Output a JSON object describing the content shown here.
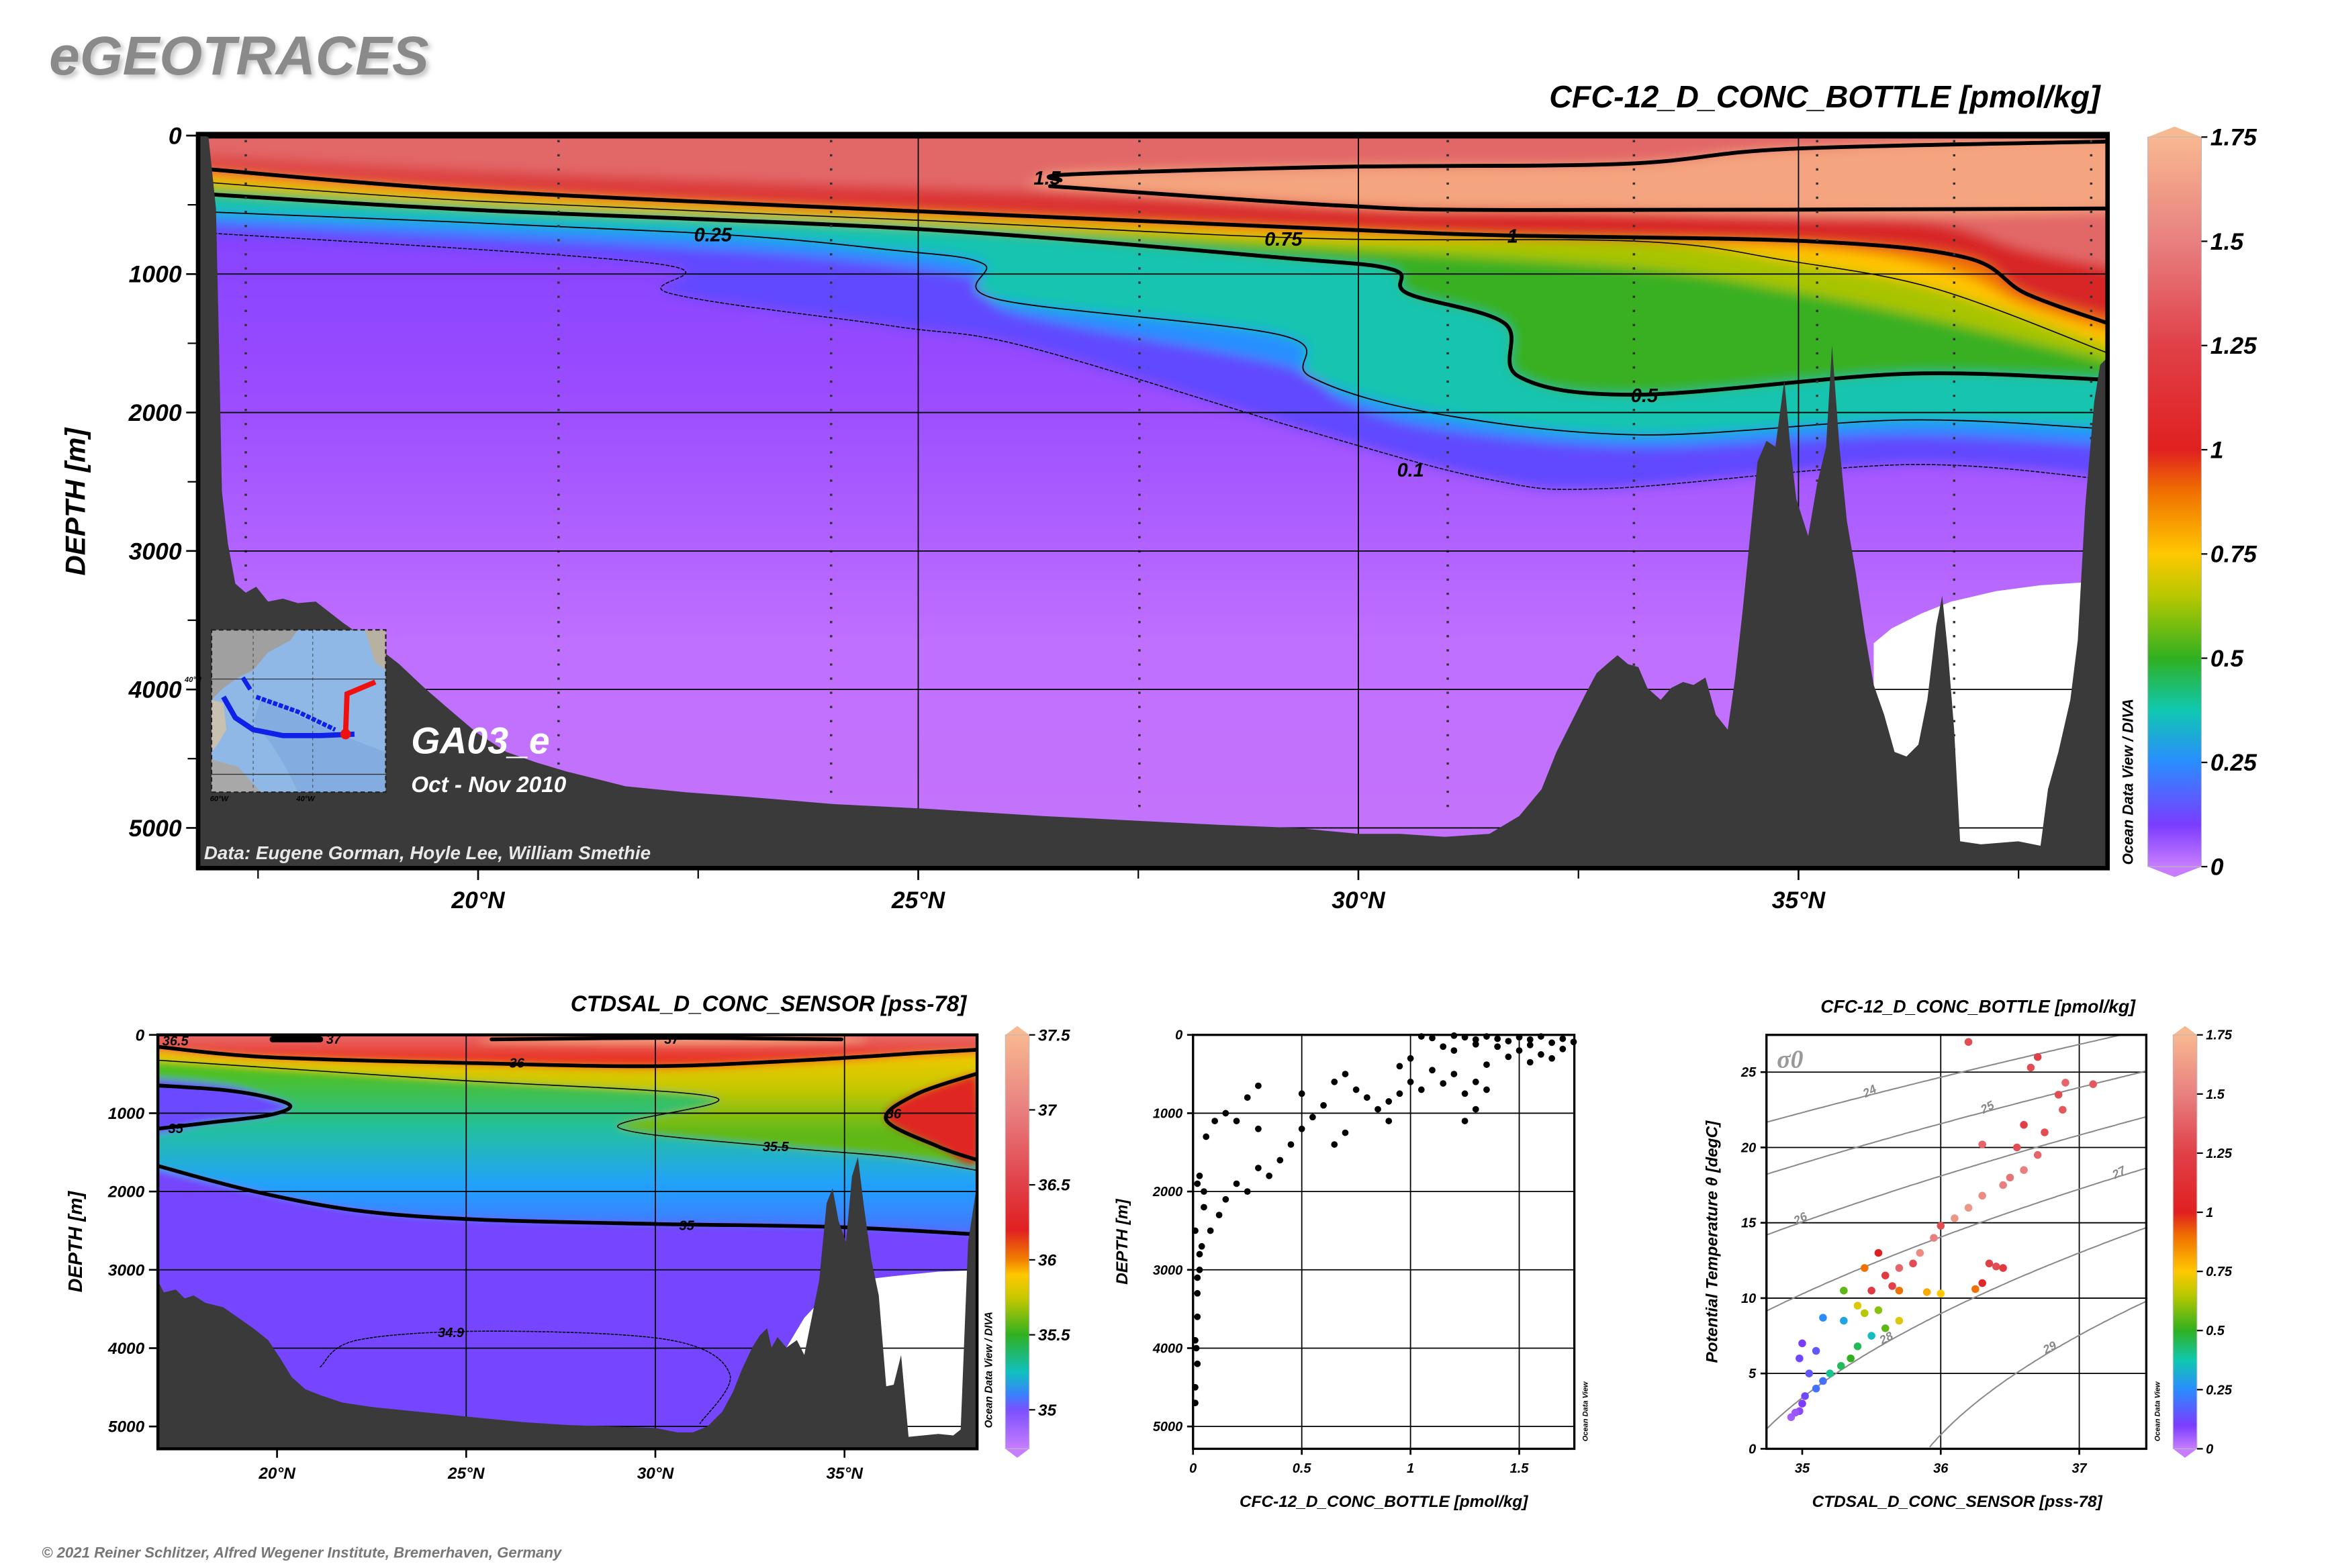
{
  "logo": "eGEOTRACES",
  "copyright": "© 2021 Reiner Schlitzer, Alfred Wegener Institute, Bremerhaven, Germany",
  "main": {
    "title": "CFC-12_D_CONC_BOTTLE [pmol/kg]",
    "ylabel": "DEPTH [m]",
    "odv_label": "Ocean Data View / DIVA",
    "section_name": "GA03_e",
    "period": "Oct - Nov 2010",
    "credit": "Data: Eugene Gorman, Hoyle Lee, William Smethie",
    "contour_labels": [
      "1.5",
      "0.25",
      "0.75",
      "1",
      "0.5",
      "0.1"
    ],
    "inset_labels": {
      "lat": "40°N",
      "lon1": "60°W",
      "lon2": "40°W"
    }
  },
  "salinity": {
    "title": "CTDSAL_D_CONC_SENSOR [pss-78]",
    "ylabel": "DEPTH [m]",
    "odv_label": "Ocean Data View / DIVA",
    "contour_labels": [
      "36.5",
      "37",
      "37",
      "36",
      "36",
      "35",
      "35.5",
      "35",
      "34.9"
    ]
  },
  "profile": {
    "xlabel": "CFC-12_D_CONC_BOTTLE [pmol/kg]",
    "ylabel": "DEPTH [m]",
    "odv_label": "Ocean Data View"
  },
  "ts": {
    "title": "CFC-12_D_CONC_BOTTLE [pmol/kg]",
    "xlabel": "CTDSAL_D_CONC_SENSOR [pss-78]",
    "ylabel": "Potential Temperature θ [degC]",
    "sigma_label": "σ0",
    "odv_label": "Ocean Data View"
  },
  "chart_data": [
    {
      "id": "cfc_section",
      "type": "heatmap",
      "title": "CFC-12_D_CONC_BOTTLE [pmol/kg]",
      "xlabel": "",
      "ylabel": "DEPTH [m]",
      "xlim": [
        16.8,
        38.5
      ],
      "ylim": [
        5300,
        0
      ],
      "xticks": [
        20,
        25,
        30,
        35
      ],
      "xticklabels": [
        "20°N",
        "25°N",
        "30°N",
        "35°N"
      ],
      "yticks": [
        0,
        1000,
        2000,
        3000,
        4000,
        5000
      ],
      "yticklabels": [
        "0",
        "1000",
        "2000",
        "3000",
        "4000",
        "5000"
      ],
      "contour_levels": [
        0.1,
        0.25,
        0.5,
        0.75,
        1,
        1.5
      ],
      "colorbar": {
        "range": [
          0,
          1.75
        ],
        "ticks": [
          0,
          0.25,
          0.5,
          0.75,
          1,
          1.25,
          1.5,
          1.75
        ],
        "ticklabels": [
          "0",
          "0.25",
          "0.5",
          "0.75",
          "1",
          "1.25",
          "1.5",
          "1.75"
        ],
        "stops": [
          [
            0,
            "#c77dff"
          ],
          [
            0.1,
            "#7b3cff"
          ],
          [
            0.25,
            "#2a8cff"
          ],
          [
            0.375,
            "#10c8b0"
          ],
          [
            0.5,
            "#30b020"
          ],
          [
            0.65,
            "#b8c800"
          ],
          [
            0.75,
            "#ffc800"
          ],
          [
            0.9,
            "#f07000"
          ],
          [
            1.0,
            "#e02020"
          ],
          [
            1.25,
            "#e04048"
          ],
          [
            1.5,
            "#e88080"
          ],
          [
            1.75,
            "#f8b890"
          ]
        ]
      },
      "grid": true
    },
    {
      "id": "salinity_section",
      "type": "heatmap",
      "title": "CTDSAL_D_CONC_SENSOR [pss-78]",
      "xlabel": "",
      "ylabel": "DEPTH [m]",
      "xlim": [
        16.8,
        38.5
      ],
      "ylim": [
        5300,
        0
      ],
      "xticks": [
        20,
        25,
        30,
        35
      ],
      "xticklabels": [
        "20°N",
        "25°N",
        "30°N",
        "35°N"
      ],
      "yticks": [
        0,
        1000,
        2000,
        3000,
        4000,
        5000
      ],
      "yticklabels": [
        "0",
        "1000",
        "2000",
        "3000",
        "4000",
        "5000"
      ],
      "contour_levels": [
        34.9,
        35,
        35.5,
        36,
        36.5,
        37
      ],
      "colorbar": {
        "range": [
          34.74,
          37.5
        ],
        "ticks": [
          35,
          35.5,
          36,
          36.5,
          37,
          37.5
        ],
        "ticklabels": [
          "35",
          "35.5",
          "36",
          "36.5",
          "37",
          "37.5"
        ],
        "stops": [
          [
            34.74,
            "#c77dff"
          ],
          [
            35.0,
            "#7b50ff"
          ],
          [
            35.1,
            "#3a80ff"
          ],
          [
            35.25,
            "#10c0c0"
          ],
          [
            35.5,
            "#30b020"
          ],
          [
            35.75,
            "#c8c800"
          ],
          [
            35.9,
            "#ffc800"
          ],
          [
            36.0,
            "#f08000"
          ],
          [
            36.2,
            "#e02020"
          ],
          [
            36.5,
            "#e04048"
          ],
          [
            37.0,
            "#e88080"
          ],
          [
            37.5,
            "#f8b890"
          ]
        ]
      },
      "grid": true
    },
    {
      "id": "cfc_profile",
      "type": "scatter",
      "xlabel": "CFC-12_D_CONC_BOTTLE [pmol/kg]",
      "ylabel": "DEPTH [m]",
      "xlim": [
        0,
        1.76
      ],
      "ylim": [
        5300,
        0
      ],
      "xticks": [
        0,
        0.5,
        1,
        1.5
      ],
      "xticklabels": [
        "0",
        "0.5",
        "1",
        "1.5"
      ],
      "yticks": [
        0,
        1000,
        2000,
        3000,
        4000,
        5000
      ],
      "yticklabels": [
        "0",
        "1000",
        "2000",
        "3000",
        "4000",
        "5000"
      ],
      "grid": true,
      "points": [
        [
          1.05,
          20
        ],
        [
          1.1,
          40
        ],
        [
          1.2,
          10
        ],
        [
          1.25,
          30
        ],
        [
          1.3,
          60
        ],
        [
          1.35,
          20
        ],
        [
          1.4,
          50
        ],
        [
          1.45,
          80
        ],
        [
          1.5,
          30
        ],
        [
          1.55,
          60
        ],
        [
          1.6,
          20
        ],
        [
          1.65,
          100
        ],
        [
          1.7,
          50
        ],
        [
          1.75,
          90
        ],
        [
          1.3,
          120
        ],
        [
          1.4,
          150
        ],
        [
          1.5,
          200
        ],
        [
          1.6,
          250
        ],
        [
          1.2,
          200
        ],
        [
          1.45,
          280
        ],
        [
          1.55,
          350
        ],
        [
          1.65,
          300
        ],
        [
          1.0,
          300
        ],
        [
          0.95,
          400
        ],
        [
          1.1,
          450
        ],
        [
          1.2,
          500
        ],
        [
          1.3,
          600
        ],
        [
          1.35,
          700
        ],
        [
          1.25,
          750
        ],
        [
          1.15,
          620
        ],
        [
          1.05,
          700
        ],
        [
          0.9,
          850
        ],
        [
          0.8,
          800
        ],
        [
          0.75,
          700
        ],
        [
          0.6,
          900
        ],
        [
          0.55,
          1050
        ],
        [
          0.5,
          1200
        ],
        [
          0.45,
          1400
        ],
        [
          0.4,
          1600
        ],
        [
          0.35,
          1800
        ],
        [
          0.3,
          1700
        ],
        [
          0.25,
          2000
        ],
        [
          0.2,
          1900
        ],
        [
          0.15,
          2100
        ],
        [
          0.12,
          2300
        ],
        [
          0.08,
          2500
        ],
        [
          0.05,
          2200
        ],
        [
          0.04,
          2700
        ],
        [
          0.03,
          3000
        ],
        [
          0.02,
          3300
        ],
        [
          0.02,
          3600
        ],
        [
          0.015,
          4000
        ],
        [
          0.01,
          4500
        ],
        [
          0.01,
          4700
        ],
        [
          0.05,
          2000
        ],
        [
          0.03,
          1800
        ],
        [
          0.06,
          1300
        ],
        [
          0.1,
          1100
        ],
        [
          0.15,
          1000
        ],
        [
          0.25,
          800
        ],
        [
          0.3,
          650
        ],
        [
          0.5,
          750
        ],
        [
          0.65,
          600
        ],
        [
          0.7,
          500
        ],
        [
          0.85,
          950
        ],
        [
          0.95,
          750
        ],
        [
          1.0,
          600
        ],
        [
          0.9,
          1100
        ],
        [
          1.25,
          1100
        ],
        [
          1.3,
          950
        ],
        [
          0.65,
          1400
        ],
        [
          0.7,
          1250
        ],
        [
          0.3,
          1200
        ],
        [
          0.2,
          1100
        ],
        [
          0.02,
          1900
        ],
        [
          0.01,
          2500
        ],
        [
          0.03,
          2800
        ],
        [
          0.02,
          4200
        ],
        [
          0.01,
          3900
        ],
        [
          0.02,
          3100
        ],
        [
          1.15,
          150
        ],
        [
          1.55,
          130
        ],
        [
          1.7,
          180
        ],
        [
          1.35,
          380
        ]
      ]
    },
    {
      "id": "ts_diagram",
      "type": "scatter",
      "title": "CFC-12_D_CONC_BOTTLE [pmol/kg]",
      "xlabel": "CTDSAL_D_CONC_SENSOR [pss-78]",
      "ylabel": "Potential Temperature θ [degC]",
      "xlim": [
        34.74,
        37.49
      ],
      "ylim": [
        0,
        27.5
      ],
      "xticks": [
        35,
        36,
        37
      ],
      "xticklabels": [
        "35",
        "36",
        "37"
      ],
      "yticks": [
        0,
        5,
        10,
        15,
        20,
        25
      ],
      "yticklabels": [
        "0",
        "5",
        "10",
        "15",
        "20",
        "25"
      ],
      "grid": true,
      "color_variable": "CFC-12_D_CONC_BOTTLE [pmol/kg]",
      "colorbar": {
        "range": [
          0,
          1.75
        ],
        "ticks": [
          0,
          0.25,
          0.5,
          0.75,
          1,
          1.25,
          1.5,
          1.75
        ],
        "ticklabels": [
          "0",
          "0.25",
          "0.5",
          "0.75",
          "1",
          "1.25",
          "1.5",
          "1.75"
        ]
      },
      "isopycnals": [
        {
          "level": 24,
          "label": "24",
          "label_sal": 35.5
        },
        {
          "level": 25,
          "label": "25",
          "label_sal": 36.35
        },
        {
          "level": 26,
          "label": "26",
          "label_sal": 35.0
        },
        {
          "level": 27,
          "label": "27",
          "label_sal": 37.3
        },
        {
          "level": 28,
          "label": "28",
          "label_sal": 35.62
        },
        {
          "level": 29,
          "label": "29",
          "label_sal": 36.8
        }
      ],
      "points": [
        [
          36.2,
          27,
          1.3
        ],
        [
          36.7,
          26,
          1.25
        ],
        [
          36.65,
          25.3,
          1.3
        ],
        [
          36.9,
          24.3,
          1.4
        ],
        [
          37.1,
          24.2,
          1.35
        ],
        [
          36.85,
          23.5,
          1.3
        ],
        [
          36.88,
          22.5,
          1.35
        ],
        [
          36.6,
          21.5,
          1.25
        ],
        [
          36.75,
          21,
          1.3
        ],
        [
          36.55,
          20,
          1.3
        ],
        [
          36.3,
          20.2,
          1.4
        ],
        [
          36.7,
          19.5,
          1.4
        ],
        [
          36.6,
          18.5,
          1.5
        ],
        [
          36.5,
          18,
          1.45
        ],
        [
          36.45,
          17.5,
          1.5
        ],
        [
          36.3,
          16.8,
          1.55
        ],
        [
          36.2,
          16,
          1.6
        ],
        [
          36.1,
          15.3,
          1.6
        ],
        [
          36.0,
          14.8,
          1.3
        ],
        [
          35.95,
          14,
          1.5
        ],
        [
          35.85,
          13,
          1.55
        ],
        [
          35.8,
          12.3,
          1.3
        ],
        [
          35.7,
          12,
          1.4
        ],
        [
          35.6,
          11.5,
          1.2
        ],
        [
          35.65,
          10.8,
          1.25
        ],
        [
          35.5,
          10.5,
          1.2
        ],
        [
          35.7,
          10.5,
          0.9
        ],
        [
          35.9,
          10.4,
          0.8
        ],
        [
          36.0,
          10.3,
          0.75
        ],
        [
          36.25,
          10.6,
          0.9
        ],
        [
          36.3,
          11,
          1.05
        ],
        [
          36.35,
          12.3,
          1.25
        ],
        [
          36.4,
          12.1,
          1.3
        ],
        [
          36.45,
          12,
          1.2
        ],
        [
          35.55,
          13,
          1.0
        ],
        [
          35.45,
          12,
          0.9
        ],
        [
          35.4,
          9.5,
          0.7
        ],
        [
          35.45,
          9,
          0.65
        ],
        [
          35.3,
          10.5,
          0.55
        ],
        [
          35.55,
          9.2,
          0.6
        ],
        [
          35.6,
          8,
          0.55
        ],
        [
          35.7,
          8.5,
          0.7
        ],
        [
          35.5,
          7.5,
          0.35
        ],
        [
          35.4,
          6.8,
          0.45
        ],
        [
          35.3,
          8.5,
          0.3
        ],
        [
          35.15,
          8.7,
          0.25
        ],
        [
          35.35,
          6,
          0.5
        ],
        [
          35.28,
          5.5,
          0.45
        ],
        [
          35.2,
          5,
          0.4
        ],
        [
          35.1,
          6.5,
          0.15
        ],
        [
          35.0,
          7,
          0.1
        ],
        [
          34.98,
          6,
          0.12
        ],
        [
          35.05,
          5,
          0.15
        ],
        [
          35.15,
          4.5,
          0.2
        ],
        [
          35.1,
          4,
          0.2
        ],
        [
          35.02,
          3.5,
          0.12
        ],
        [
          35.0,
          3,
          0.1
        ],
        [
          34.98,
          2.5,
          0.08
        ],
        [
          34.92,
          2.1,
          0.05
        ],
        [
          34.95,
          2.4,
          0.06
        ]
      ]
    }
  ]
}
